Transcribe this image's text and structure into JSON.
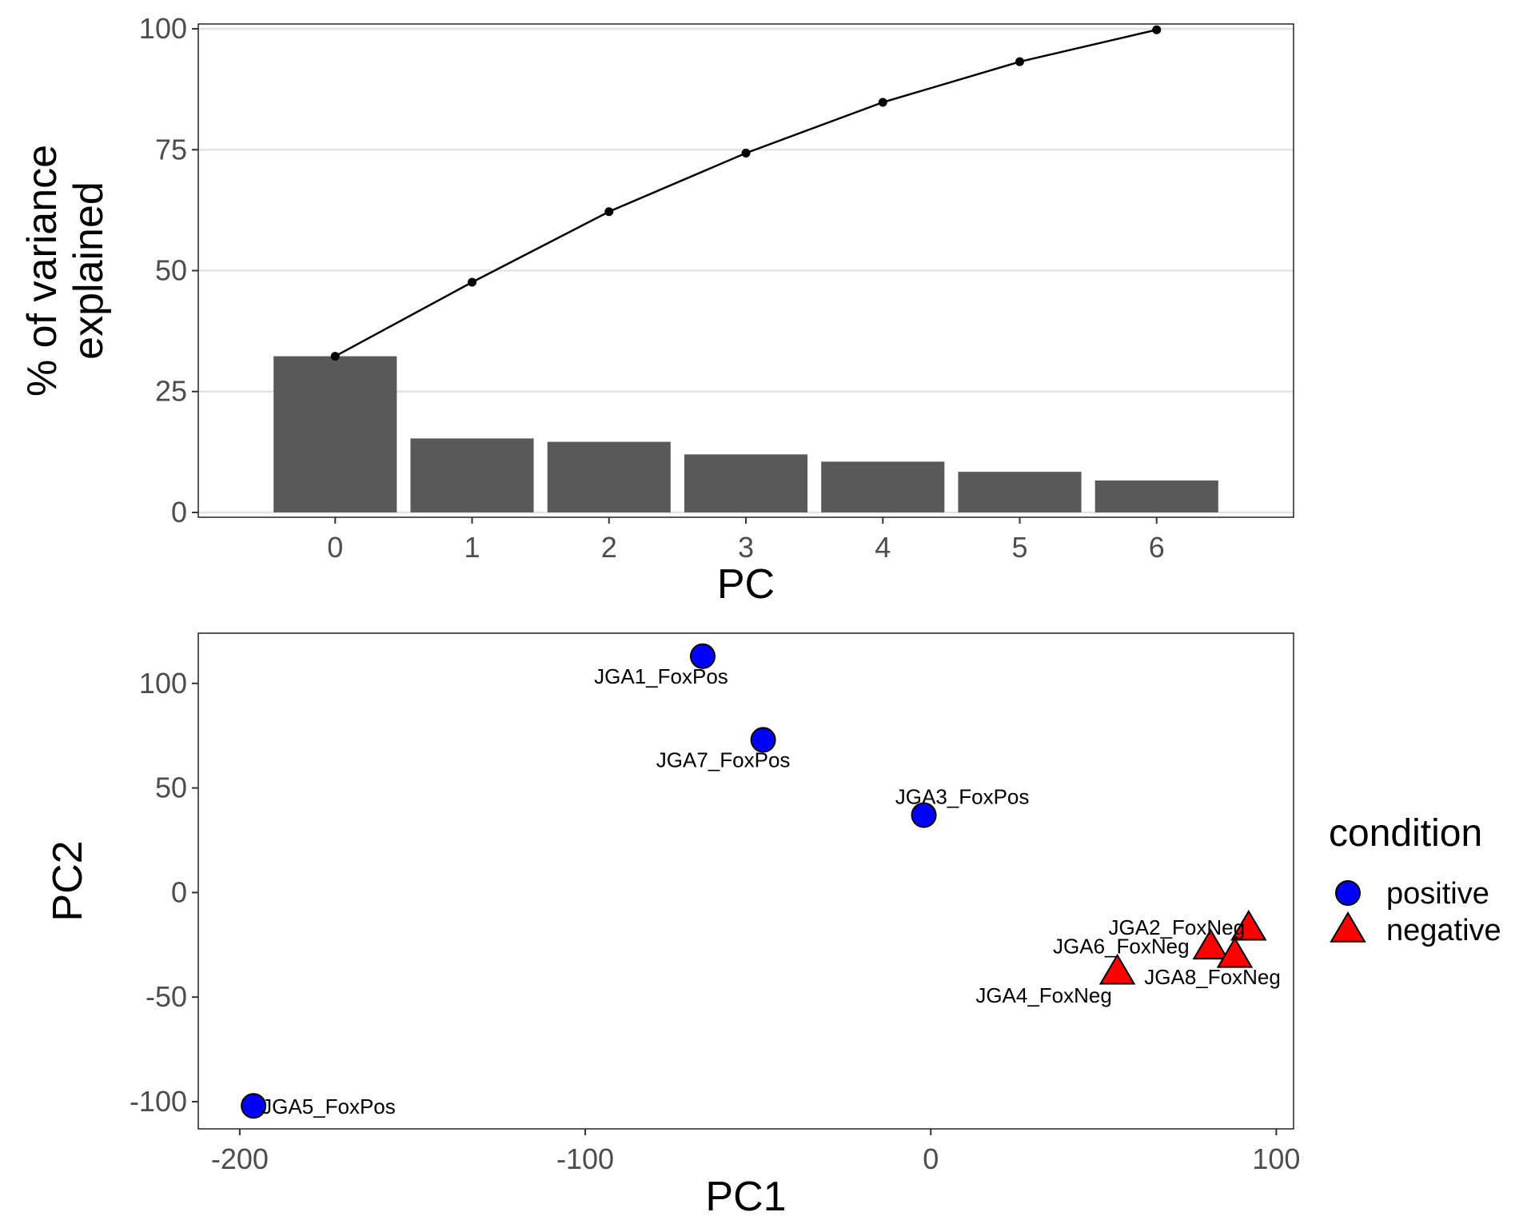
{
  "chart_data": [
    {
      "type": "bar",
      "title": "",
      "xlabel": "PC",
      "ylabel_lines": [
        "% of variance",
        "explained"
      ],
      "categories": [
        "0",
        "1",
        "2",
        "3",
        "4",
        "5",
        "6"
      ],
      "values": [
        32.3,
        15.3,
        14.6,
        12.0,
        10.5,
        8.4,
        6.6
      ],
      "cumulative": [
        32.3,
        47.6,
        62.2,
        74.3,
        84.8,
        93.2,
        99.8
      ],
      "yticks": [
        0,
        25,
        50,
        75,
        100
      ],
      "ytick_labels": [
        "0",
        "25",
        "50",
        "75",
        "100"
      ],
      "ylim": [
        -1,
        101
      ],
      "grid": "horizontal",
      "bar_color": "#595959",
      "line_color": "#000000"
    },
    {
      "type": "scatter",
      "title": "",
      "xlabel": "PC1",
      "ylabel": "PC2",
      "xlim": [
        -212,
        105
      ],
      "ylim": [
        -113,
        124
      ],
      "xticks": [
        -200,
        -100,
        0,
        100
      ],
      "xtick_labels": [
        "-200",
        "-100",
        "0",
        "100"
      ],
      "yticks": [
        -100,
        -50,
        0,
        50,
        100
      ],
      "ytick_labels": [
        "-100",
        "-50",
        "0",
        "50",
        "100"
      ],
      "grid": "none",
      "legend": {
        "title": "condition",
        "placement": "right",
        "entries": [
          {
            "label": "positive",
            "shape": "circle",
            "color": "#0000ff"
          },
          {
            "label": "negative",
            "shape": "triangle",
            "color": "#ff0000"
          }
        ]
      },
      "points": [
        {
          "label": "JGA1_FoxPos",
          "x": -66,
          "y": 113,
          "condition": "positive"
        },
        {
          "label": "JGA7_FoxPos",
          "x": -48.5,
          "y": 73,
          "condition": "positive"
        },
        {
          "label": "JGA3_FoxPos",
          "x": -2,
          "y": 37,
          "condition": "positive"
        },
        {
          "label": "JGA5_FoxPos",
          "x": -196,
          "y": -102,
          "condition": "positive"
        },
        {
          "label": "JGA2_FoxNeg",
          "x": 92,
          "y": -17,
          "condition": "negative"
        },
        {
          "label": "JGA6_FoxNeg",
          "x": 81,
          "y": -26,
          "condition": "negative"
        },
        {
          "label": "JGA8_FoxNeg",
          "x": 88,
          "y": -30,
          "condition": "negative"
        },
        {
          "label": "JGA4_FoxNeg",
          "x": 54,
          "y": -38,
          "condition": "negative"
        }
      ]
    }
  ]
}
